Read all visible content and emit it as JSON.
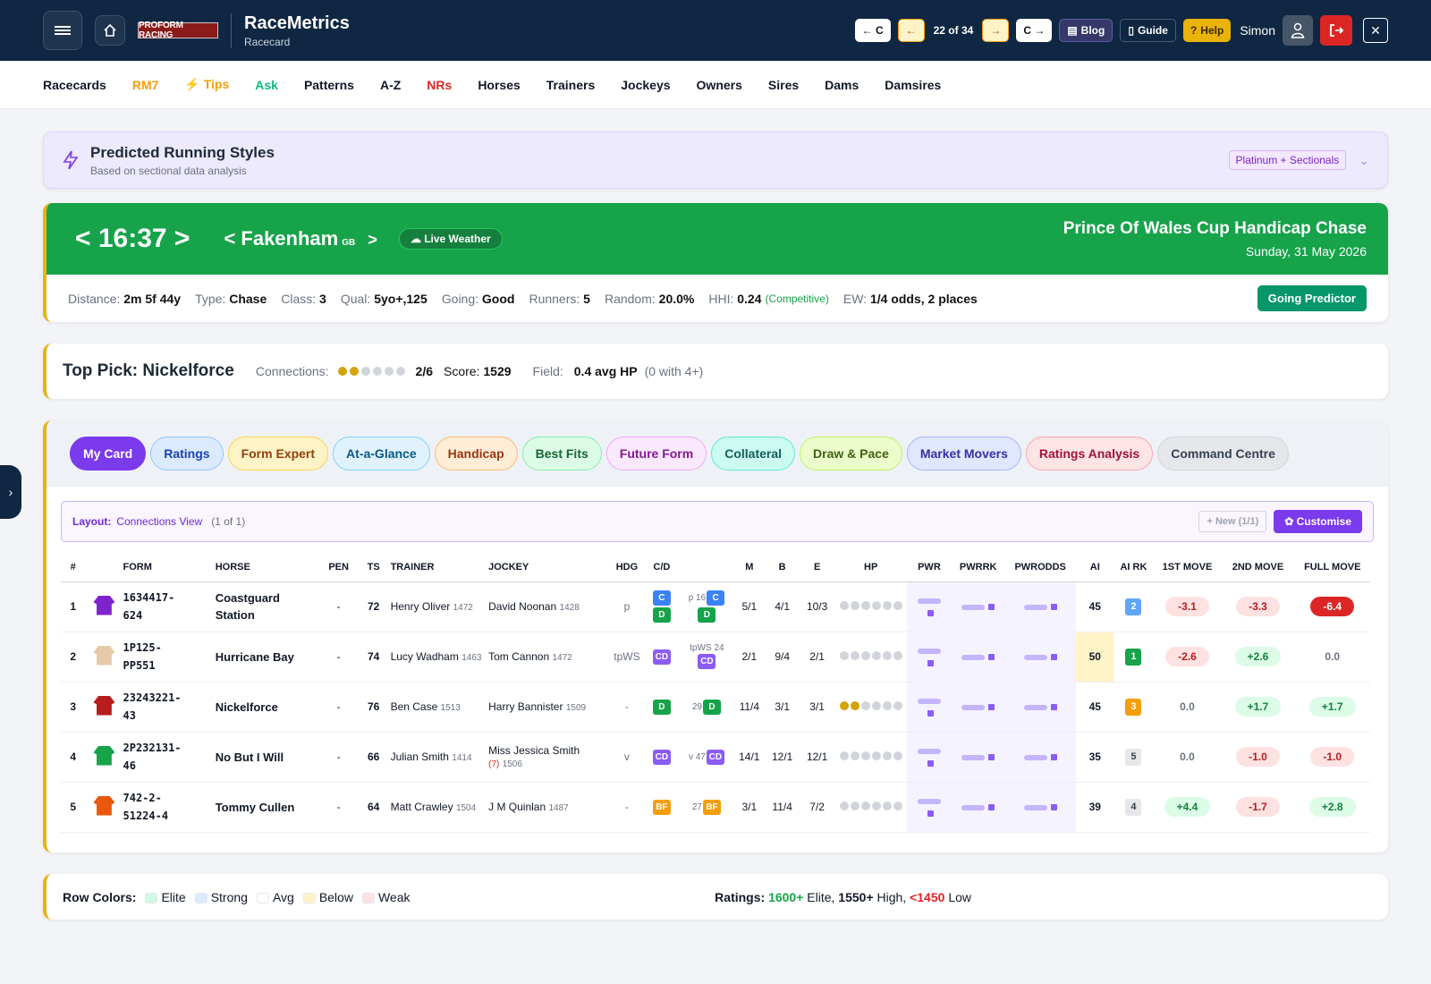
{
  "header": {
    "logo_text": "PROFORM RACING",
    "app_title": "RaceMetrics",
    "app_subtitle": "Racecard",
    "nav_prev_course": "← C",
    "nav_prev": "←",
    "counter": "22 of 34",
    "nav_next": "→",
    "nav_next_course": "C →",
    "blog": "Blog",
    "guide": "Guide",
    "help": "Help",
    "user": "Simon"
  },
  "menu": [
    "Racecards",
    "RM7",
    "Tips",
    "Ask",
    "Patterns",
    "A-Z",
    "NRs",
    "Horses",
    "Trainers",
    "Jockeys",
    "Owners",
    "Sires",
    "Dams",
    "Damsires"
  ],
  "running_styles": {
    "title": "Predicted Running Styles",
    "subtitle": "Based on sectional data analysis",
    "badge": "Platinum + Sectionals"
  },
  "race": {
    "time": "< 16:37 >",
    "course": "< Fakenham",
    "country": "GB",
    "course_next": ">",
    "weather": "Live Weather",
    "title": "Prince Of Wales Cup Handicap Chase",
    "date": "Sunday, 31 May 2026",
    "distance_label": "Distance:",
    "distance": "2m 5f 44y",
    "type_label": "Type:",
    "type": "Chase",
    "class_label": "Class:",
    "class": "3",
    "qual_label": "Qual:",
    "qual": "5yo+,125",
    "going_label": "Going:",
    "going": "Good",
    "runners_label": "Runners:",
    "runners": "5",
    "random_label": "Random:",
    "random": "20.0%",
    "hhi_label": "HHI:",
    "hhi": "0.24",
    "hhi_note": "(Competitive)",
    "ew_label": "EW:",
    "ew": "1/4 odds, 2 places",
    "going_predictor": "Going Predictor"
  },
  "top_pick": {
    "label": "Top Pick: Nickelforce",
    "connections_label": "Connections:",
    "connections": "2/6",
    "connections_filled": 2,
    "connections_total": 6,
    "score_label": "Score:",
    "score": "1529",
    "field_label": "Field:",
    "field": "0.4 avg HP",
    "field_note": "(0 with 4+)"
  },
  "tabs": [
    {
      "label": "My Card",
      "bg": "#7c3aed",
      "border": "#7c3aed",
      "fg": "#ffffff"
    },
    {
      "label": "Ratings",
      "bg": "#dbeafe",
      "border": "#93c5fd",
      "fg": "#1e40af"
    },
    {
      "label": "Form Expert",
      "bg": "#fef3c7",
      "border": "#fcd34d",
      "fg": "#92400e"
    },
    {
      "label": "At-a-Glance",
      "bg": "#e0f2fe",
      "border": "#7dd3fc",
      "fg": "#075985"
    },
    {
      "label": "Handicap",
      "bg": "#ffedd5",
      "border": "#fdba74",
      "fg": "#9a3412"
    },
    {
      "label": "Best Fits",
      "bg": "#dcfce7",
      "border": "#86efac",
      "fg": "#166534"
    },
    {
      "label": "Future Form",
      "bg": "#fae8ff",
      "border": "#f0abfc",
      "fg": "#86198f"
    },
    {
      "label": "Collateral",
      "bg": "#ccfbf1",
      "border": "#5eead4",
      "fg": "#115e59"
    },
    {
      "label": "Draw & Pace",
      "bg": "#ecfccb",
      "border": "#bef264",
      "fg": "#3f6212"
    },
    {
      "label": "Market Movers",
      "bg": "#e0e7ff",
      "border": "#a5b4fc",
      "fg": "#3730a3"
    },
    {
      "label": "Ratings Analysis",
      "bg": "#ffe4e6",
      "border": "#fda4af",
      "fg": "#9f1239"
    },
    {
      "label": "Command Centre",
      "bg": "#e5e7eb",
      "border": "#d1d5db",
      "fg": "#374151"
    }
  ],
  "layout": {
    "label": "Layout:",
    "value": "Connections View",
    "count": "(1 of 1)",
    "new_button": "+ New (1/1)",
    "customise_button": "Customise"
  },
  "columns": [
    "#",
    "",
    "FORM",
    "HORSE",
    "PEN",
    "TS",
    "TRAINER",
    "JOCKEY",
    "HDG",
    "C/D",
    "",
    "M",
    "B",
    "E",
    "HP",
    "PWR",
    "PWRRK",
    "PWRODDS",
    "AI",
    "AI RK",
    "1ST MOVE",
    "2ND MOVE",
    "FULL MOVE"
  ],
  "runners": [
    {
      "no": "1",
      "silk_color": "#7e22ce",
      "form1": "1634417-",
      "form2": "624",
      "horse": "Coastguard Station",
      "pen": "-",
      "ts": "72",
      "trainer": "Henry Oliver",
      "trainer_rating": "1472",
      "jockey": "David Noonan",
      "jockey_rating": "1428",
      "jockey_claim": "",
      "hdg": "p",
      "cd": [
        "C",
        "D"
      ],
      "cd_extra_prefix": "p",
      "cd_extra_num": "16",
      "cd_extra": [
        "C",
        "D"
      ],
      "m": "5/1",
      "b": "4/1",
      "e": "10/3",
      "hp": 0,
      "ai": "45",
      "ai_rk": "2",
      "ai_rk_bg": "#60a5fa",
      "move1": "-3.1",
      "move1_style": "neg",
      "move2": "-3.3",
      "move2_style": "neg",
      "full": "-6.4",
      "full_style": "negs"
    },
    {
      "no": "2",
      "silk_color": "#e5c9a8",
      "form1": "1P125-",
      "form2": "PP551",
      "horse": "Hurricane Bay",
      "pen": "-",
      "ts": "74",
      "trainer": "Lucy Wadham",
      "trainer_rating": "1463",
      "jockey": "Tom Cannon",
      "jockey_rating": "1472",
      "jockey_claim": "",
      "hdg": "tpWS",
      "cd": [
        "CD"
      ],
      "cd_extra_prefix": "tpWS",
      "cd_extra_num": "24",
      "cd_extra": [
        "CD"
      ],
      "m": "2/1",
      "b": "9/4",
      "e": "2/1",
      "hp": 0,
      "ai": "50",
      "ai_rk": "1",
      "ai_rk_bg": "#16a34a",
      "move1": "-2.6",
      "move1_style": "neg",
      "move2": "+2.6",
      "move2_style": "pos",
      "full": "0.0",
      "full_style": "neu"
    },
    {
      "no": "3",
      "silk_color": "#b91c1c",
      "form1": "23243221-",
      "form2": "43",
      "horse": "Nickelforce",
      "pen": "-",
      "ts": "76",
      "trainer": "Ben Case",
      "trainer_rating": "1513",
      "jockey": "Harry Bannister",
      "jockey_rating": "1509",
      "jockey_claim": "",
      "hdg": "-",
      "cd": [
        "D"
      ],
      "cd_extra_prefix": "",
      "cd_extra_num": "29",
      "cd_extra": [
        "D"
      ],
      "m": "11/4",
      "b": "3/1",
      "e": "3/1",
      "hp": 2,
      "ai": "45",
      "ai_rk": "3",
      "ai_rk_bg": "#f59e0b",
      "move1": "0.0",
      "move1_style": "neu",
      "move2": "+1.7",
      "move2_style": "pos",
      "full": "+1.7",
      "full_style": "pos"
    },
    {
      "no": "4",
      "silk_color": "#16a34a",
      "form1": "2P232131-",
      "form2": "46",
      "horse": "No But I Will",
      "pen": "-",
      "ts": "66",
      "trainer": "Julian Smith",
      "trainer_rating": "1414",
      "jockey": "Miss Jessica Smith",
      "jockey_rating": "1506",
      "jockey_claim": "(7)",
      "hdg": "v",
      "cd": [
        "CD"
      ],
      "cd_extra_prefix": "v",
      "cd_extra_num": "47",
      "cd_extra": [
        "CD"
      ],
      "m": "14/1",
      "b": "12/1",
      "e": "12/1",
      "hp": 0,
      "ai": "35",
      "ai_rk": "5",
      "ai_rk_bg": "#e5e7eb",
      "move1": "0.0",
      "move1_style": "neu",
      "move2": "-1.0",
      "move2_style": "neg",
      "full": "-1.0",
      "full_style": "neg"
    },
    {
      "no": "5",
      "silk_color": "#ea580c",
      "form1": "742-2-",
      "form2": "51224-4",
      "horse": "Tommy Cullen",
      "pen": "-",
      "ts": "64",
      "trainer": "Matt Crawley",
      "trainer_rating": "1504",
      "jockey": "J M Quinlan",
      "jockey_rating": "1487",
      "jockey_claim": "",
      "hdg": "-",
      "cd": [
        "BF"
      ],
      "cd_extra_prefix": "",
      "cd_extra_num": "27",
      "cd_extra": [
        "BF"
      ],
      "m": "3/1",
      "b": "11/4",
      "e": "7/2",
      "hp": 0,
      "ai": "39",
      "ai_rk": "4",
      "ai_rk_bg": "#e5e7eb",
      "move1": "+4.4",
      "move1_style": "pos",
      "move2": "-1.7",
      "move2_style": "neg",
      "full": "+2.8",
      "full_style": "pos"
    }
  ],
  "legend": {
    "row_colors_label": "Row Colors:",
    "items": [
      {
        "label": "Elite",
        "color": "#d1fae5"
      },
      {
        "label": "Strong",
        "color": "#dbeafe"
      },
      {
        "label": "Avg",
        "color": "#ffffff"
      },
      {
        "label": "Below",
        "color": "#fef3c7"
      },
      {
        "label": "Weak",
        "color": "#fee2e2"
      }
    ],
    "ratings_label": "Ratings:",
    "elite_value": "1600+",
    "elite_text": "Elite,",
    "high_value": "1550+",
    "high_text": "High,",
    "low_value": "<1450",
    "low_text": "Low"
  }
}
